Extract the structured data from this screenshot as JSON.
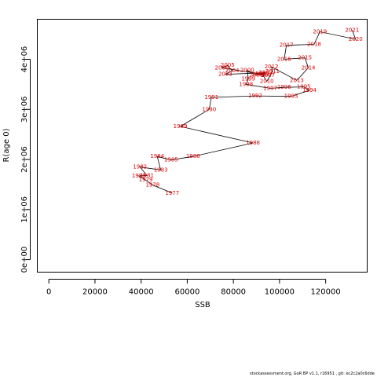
{
  "chart_data": {
    "type": "line",
    "xlabel": "SSB",
    "ylabel": "R(age 0)",
    "xlim": [
      -5000,
      138000
    ],
    "ylim": [
      -250000,
      4800000
    ],
    "x_ticks": [
      0,
      20000,
      40000,
      60000,
      80000,
      100000,
      120000
    ],
    "x_tick_labels": [
      "0",
      "20000",
      "40000",
      "60000",
      "80000",
      "100000",
      "120000"
    ],
    "y_ticks": [
      0,
      1000000,
      2000000,
      3000000,
      4000000
    ],
    "y_tick_labels": [
      "0e+00",
      "1e+06",
      "2e+06",
      "3e+06",
      "4e+06"
    ],
    "grid": false,
    "line_color": "#000000",
    "label_color": "#e00000",
    "points": [
      {
        "year": "1977",
        "ssb": 53500,
        "r": 1330000
      },
      {
        "year": "1978",
        "ssb": 45000,
        "r": 1490000
      },
      {
        "year": "1979",
        "ssb": 42000,
        "r": 1590000
      },
      {
        "year": "1980",
        "ssb": 39000,
        "r": 1670000
      },
      {
        "year": "1981",
        "ssb": 42500,
        "r": 1680000
      },
      {
        "year": "1982",
        "ssb": 39500,
        "r": 1850000
      },
      {
        "year": "1983",
        "ssb": 48500,
        "r": 1790000
      },
      {
        "year": "1984",
        "ssb": 47000,
        "r": 2060000
      },
      {
        "year": "1985",
        "ssb": 53000,
        "r": 1990000
      },
      {
        "year": "1986",
        "ssb": 62500,
        "r": 2060000
      },
      {
        "year": "1988",
        "ssb": 88500,
        "r": 2330000
      },
      {
        "year": "1989",
        "ssb": 57000,
        "r": 2660000
      },
      {
        "year": "1990",
        "ssb": 69500,
        "r": 3000000
      },
      {
        "year": "1991",
        "ssb": 70500,
        "r": 3240000
      },
      {
        "year": "1992",
        "ssb": 89500,
        "r": 3270000
      },
      {
        "year": "1993",
        "ssb": 105000,
        "r": 3260000
      },
      {
        "year": "1994",
        "ssb": 113000,
        "r": 3380000
      },
      {
        "year": "1995",
        "ssb": 110500,
        "r": 3450000
      },
      {
        "year": "1996",
        "ssb": 102000,
        "r": 3440000
      },
      {
        "year": "1997",
        "ssb": 96000,
        "r": 3420000
      },
      {
        "year": "1998",
        "ssb": 85500,
        "r": 3500000
      },
      {
        "year": "1999",
        "ssb": 86500,
        "r": 3610000
      },
      {
        "year": "2000",
        "ssb": 86000,
        "r": 3780000
      },
      {
        "year": "2001",
        "ssb": 90000,
        "r": 3690000
      },
      {
        "year": "2002",
        "ssb": 94000,
        "r": 3730000
      },
      {
        "year": "2003",
        "ssb": 76500,
        "r": 3700000
      },
      {
        "year": "2004",
        "ssb": 79500,
        "r": 3770000
      },
      {
        "year": "2005",
        "ssb": 77500,
        "r": 3880000
      },
      {
        "year": "2006",
        "ssb": 75000,
        "r": 3830000
      },
      {
        "year": "2007",
        "ssb": 95000,
        "r": 3680000
      },
      {
        "year": "2008",
        "ssb": 91000,
        "r": 3700000
      },
      {
        "year": "2009",
        "ssb": 92500,
        "r": 3710000
      },
      {
        "year": "2010",
        "ssb": 94500,
        "r": 3560000
      },
      {
        "year": "2011",
        "ssb": 97000,
        "r": 3760000
      },
      {
        "year": "2012",
        "ssb": 96500,
        "r": 3850000
      },
      {
        "year": "2013",
        "ssb": 107500,
        "r": 3580000
      },
      {
        "year": "2014",
        "ssb": 112500,
        "r": 3830000
      },
      {
        "year": "2015",
        "ssb": 111000,
        "r": 4030000
      },
      {
        "year": "2016",
        "ssb": 102000,
        "r": 4000000
      },
      {
        "year": "2017",
        "ssb": 103000,
        "r": 4280000
      },
      {
        "year": "2018",
        "ssb": 115000,
        "r": 4300000
      },
      {
        "year": "2019",
        "ssb": 117500,
        "r": 4550000
      },
      {
        "year": "2020",
        "ssb": 133000,
        "r": 4400000
      },
      {
        "year": "2021",
        "ssb": 131500,
        "r": 4580000
      }
    ]
  },
  "footer": {
    "text": "stockassessment.org, GoR BP  v1.1, r16951 , git: ec2c2a0c6dde"
  }
}
